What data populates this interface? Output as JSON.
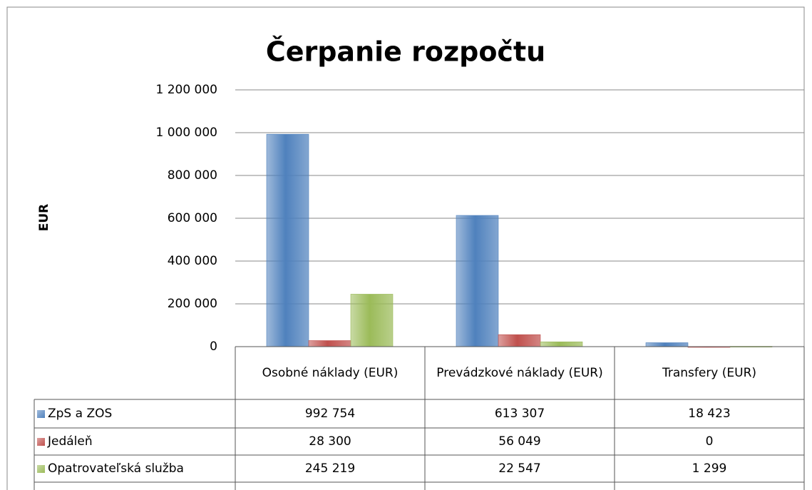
{
  "chart_data": {
    "type": "bar",
    "title": "Čerpanie rozpočtu",
    "y_label": "EUR",
    "categories": [
      "Osobné náklady (EUR)",
      "Prevádzkové náklady  (EUR)",
      "Transfery (EUR)"
    ],
    "series": [
      {
        "name": "ZpS a ZOS",
        "color": "#4f81bd",
        "values": [
          992754,
          613307,
          18423
        ],
        "value_labels": [
          "992 754",
          "613 307",
          "18 423"
        ]
      },
      {
        "name": "Jedáleň",
        "color": "#c0504d",
        "values": [
          28300,
          56049,
          0
        ],
        "value_labels": [
          "28 300",
          "56 049",
          "0"
        ]
      },
      {
        "name": "Opatrovateľská služba",
        "color": "#9bbb59",
        "values": [
          245219,
          22547,
          1299
        ],
        "value_labels": [
          "245 219",
          "22 547",
          "1 299"
        ]
      }
    ],
    "ylim": [
      0,
      1200000
    ],
    "yticks": [
      0,
      {
        "value": 200000,
        "label": "200 000"
      },
      {
        "value": 400000,
        "label": "400 000"
      },
      {
        "value": 600000,
        "label": "600 000"
      },
      {
        "value": 800000,
        "label": "800 000"
      },
      {
        "value": 1000000,
        "label": "1 000 000"
      },
      {
        "value": 1200000,
        "label": "1 200 000"
      }
    ],
    "grid": true,
    "data_table": true
  }
}
